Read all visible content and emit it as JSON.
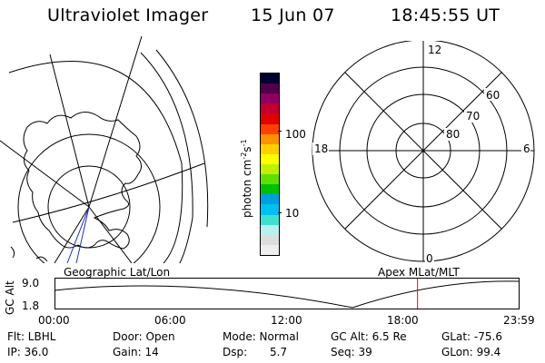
{
  "header": {
    "title": "Ultraviolet Imager",
    "date": "15 Jun 07",
    "time": "18:45:55 UT"
  },
  "left_panel": {
    "label": "Geographic Lat/Lon"
  },
  "right_panel": {
    "label": "Apex  MLat/MLT",
    "mlt_labels": [
      "12",
      "18",
      "6",
      "0"
    ],
    "mlat_labels": [
      "60",
      "70",
      "80"
    ]
  },
  "colorbar": {
    "unit_label": "photon cm",
    "unit_sup1": "-2",
    "unit_mid": "s",
    "unit_sup2": "-1",
    "tick_labels": [
      "100",
      "10"
    ],
    "scale": "log",
    "colors": [
      "#eeeeee",
      "#dddddd",
      "#b8f0f0",
      "#40e0d0",
      "#00c0f0",
      "#00a0e0",
      "#00c000",
      "#60e000",
      "#c0f000",
      "#ffff00",
      "#ffd000",
      "#ff9000",
      "#ff4000",
      "#e00000",
      "#c00030",
      "#900060",
      "#50004a",
      "#000030"
    ]
  },
  "orbit_plot": {
    "ylabel": "GC Alt",
    "y_ticks": [
      "9.0",
      "1.8"
    ],
    "x_ticks": [
      "00:00",
      "06:00",
      "12:00",
      "18:00",
      "23:59"
    ],
    "current_time_hours": 18.77,
    "marker_color": "#ff0000"
  },
  "info": {
    "flt": "Flt: LBHL",
    "ip": "IP: 36.0",
    "door": "Door: Open",
    "gain": "Gain: 14",
    "mode": "Mode: Normal",
    "dsp_label": "Dsp:",
    "dsp_value": "5.7",
    "gc_alt": "GC Alt: 6.5 Re",
    "seq": "Seq: 39",
    "glat": "GLat: -75.6",
    "glon": "GLon: 99.4"
  }
}
